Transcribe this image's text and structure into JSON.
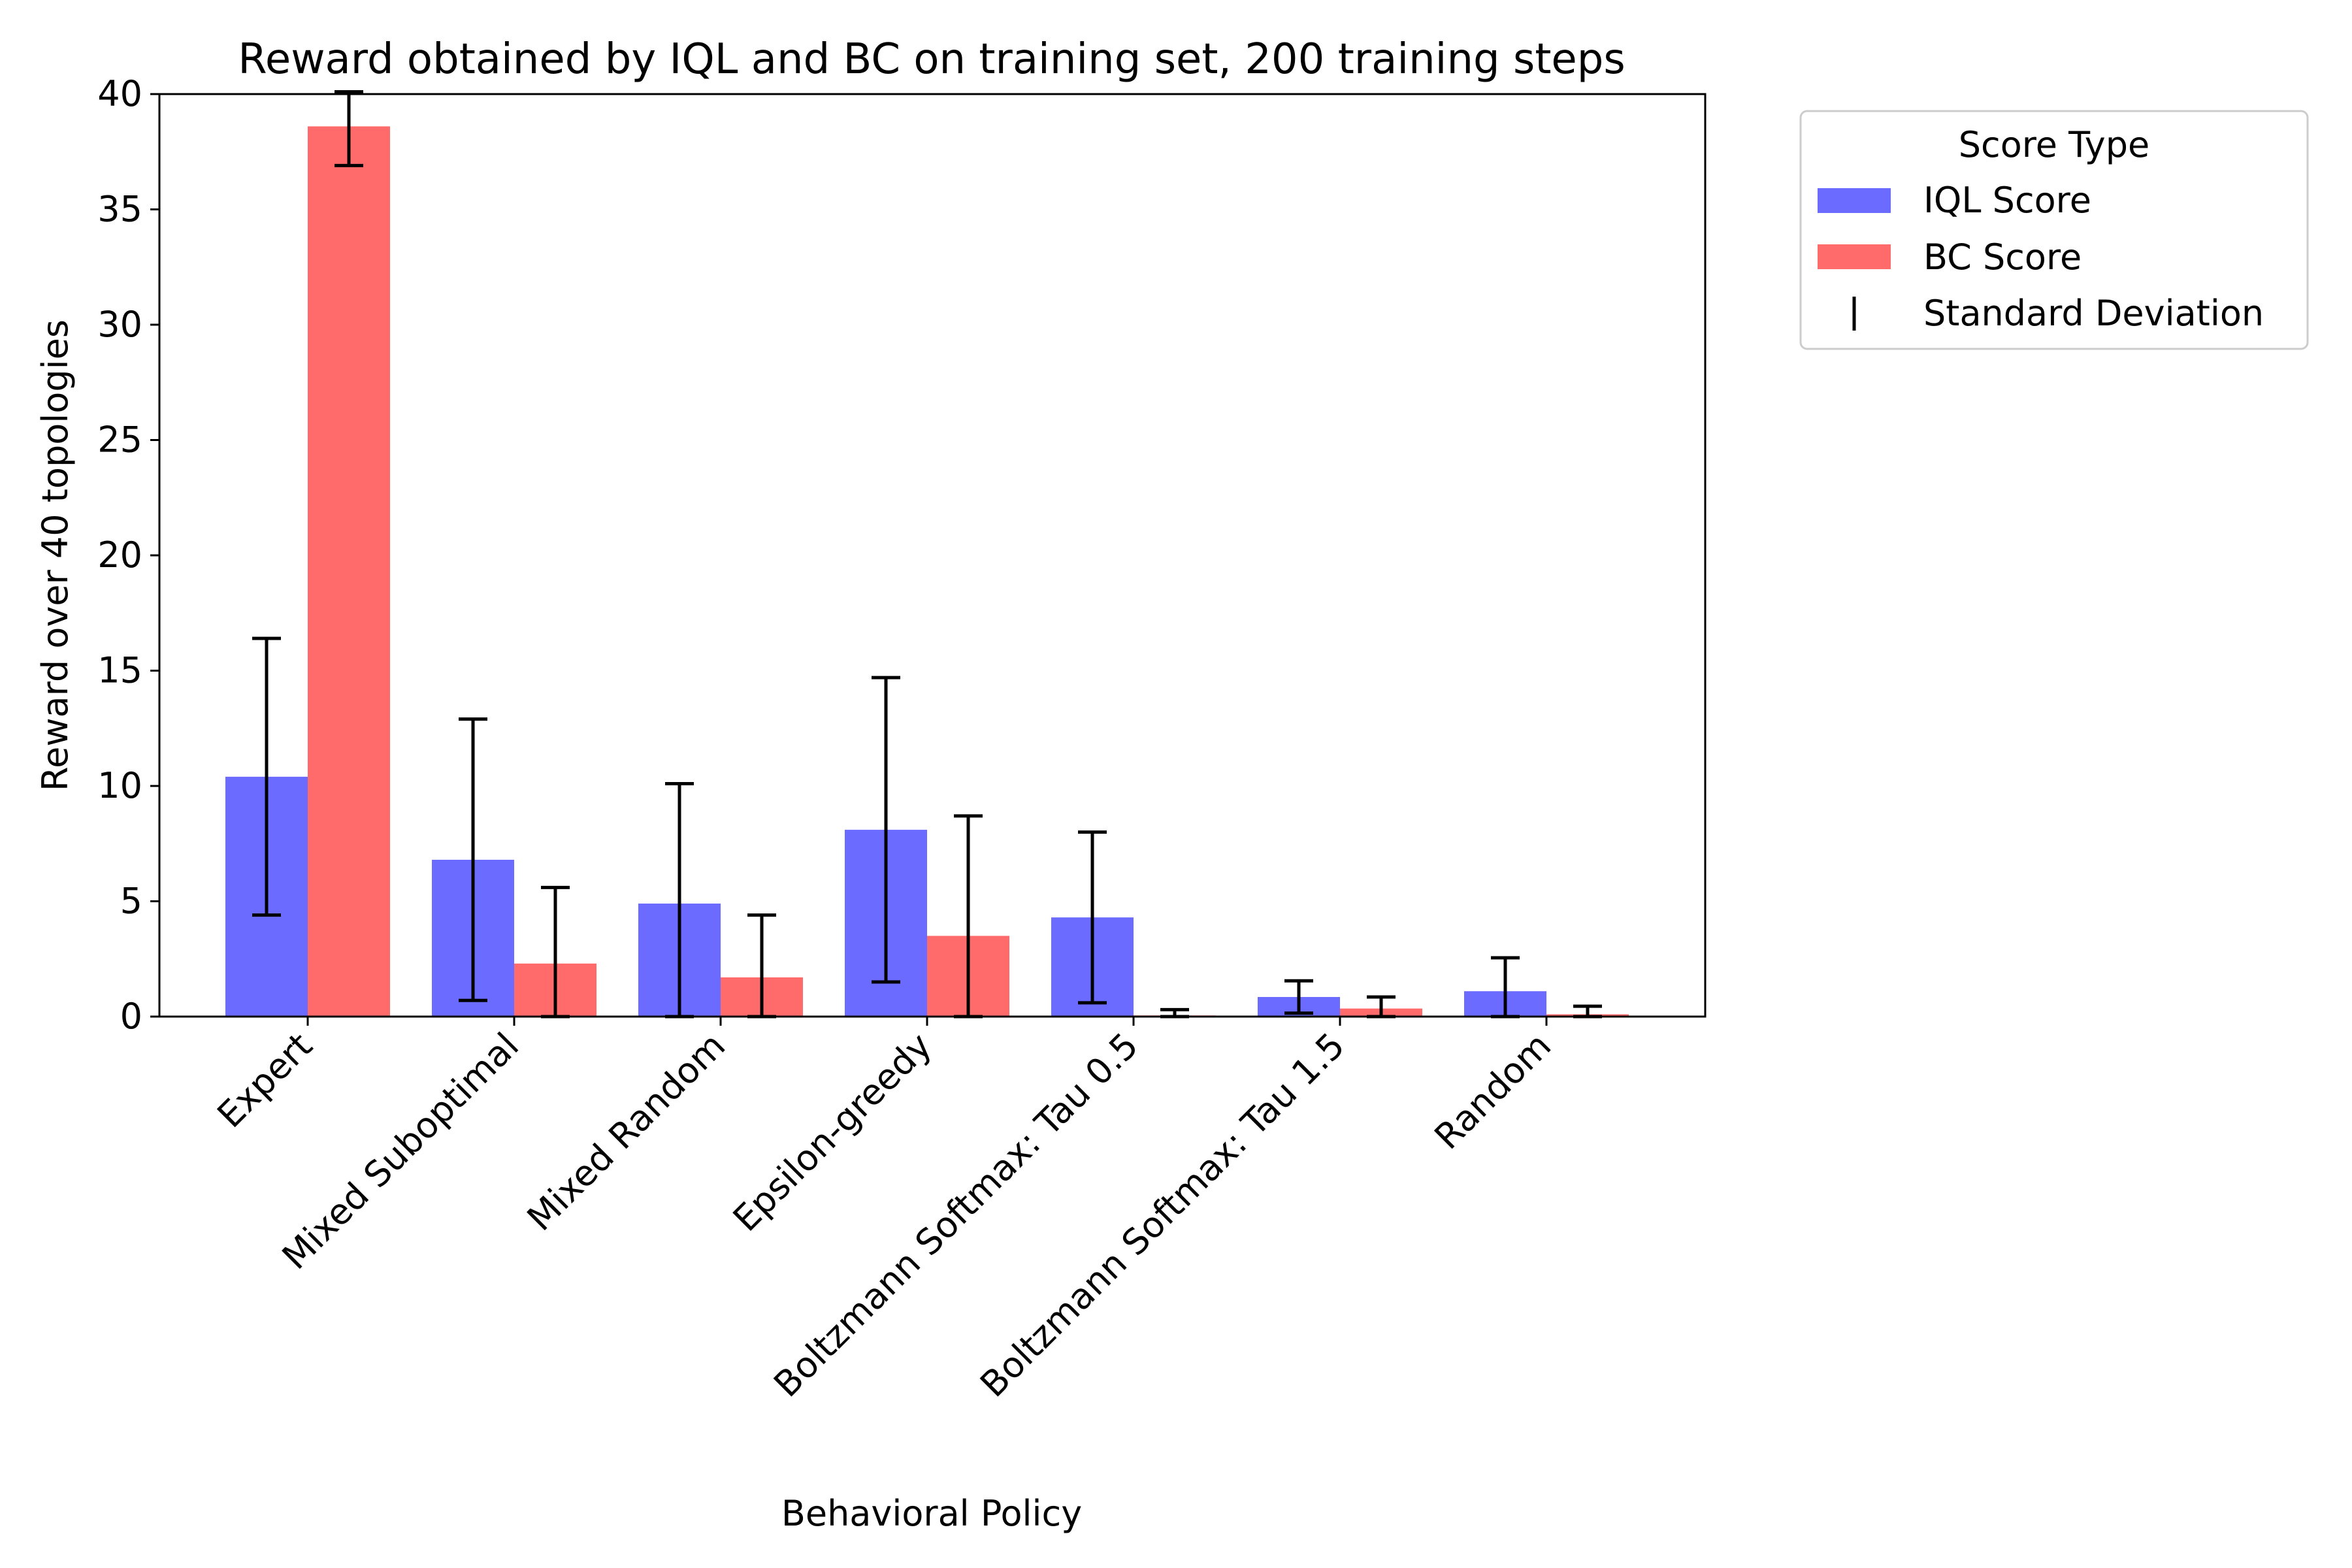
{
  "chart_data": {
    "type": "bar",
    "title": "Reward obtained by IQL and BC on training set, 200 training steps",
    "xlabel": "Behavioral Policy",
    "ylabel": "Reward over 40 topologies",
    "ylim": [
      0,
      40
    ],
    "yticks": [
      "0",
      "5",
      "10",
      "15",
      "20",
      "25",
      "30",
      "35",
      "40"
    ],
    "grid": false,
    "legend_placement": "outside right, top",
    "categories": [
      "Expert",
      "Mixed Suboptimal",
      "Mixed Random",
      "Epsilon-greedy",
      "Boltzmann Softmax: Tau 0.5",
      "Boltzmann Softmax: Tau 1.5",
      "Random"
    ],
    "series": [
      {
        "name": "IQL Score",
        "color": "#6b6bff",
        "values": [
          10.4,
          6.8,
          4.9,
          8.1,
          4.3,
          0.85,
          1.1
        ],
        "std": [
          6.0,
          6.1,
          5.2,
          6.6,
          3.7,
          0.7,
          1.45
        ]
      },
      {
        "name": "BC Score",
        "color": "#ff6b6b",
        "values": [
          38.6,
          2.3,
          1.7,
          3.5,
          0.05,
          0.35,
          0.1
        ],
        "std": [
          1.7,
          3.3,
          2.7,
          5.2,
          0.25,
          0.5,
          0.35
        ]
      }
    ],
    "legend": {
      "title": "Score Type",
      "entries": [
        "IQL Score",
        "BC Score",
        "Standard Deviation"
      ]
    }
  }
}
